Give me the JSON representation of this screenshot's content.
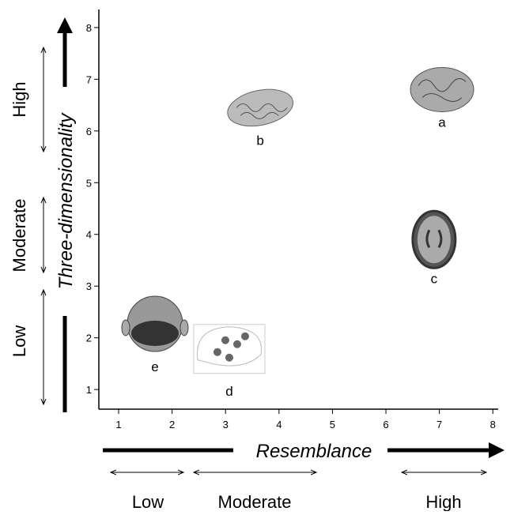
{
  "chart_data": {
    "type": "scatter",
    "x_label": "Resemblance",
    "y_label": "Three-dimensionality",
    "x_levels": [
      "Low",
      "Moderate",
      "High"
    ],
    "y_levels": [
      "High",
      "Moderate",
      "Low"
    ],
    "labels": [
      "a",
      "b",
      "c",
      "d",
      "e"
    ],
    "x": [
      7.05,
      3.65,
      6.9,
      3.07,
      1.68
    ],
    "y": [
      6.8,
      6.45,
      3.9,
      1.8,
      2.27
    ],
    "xlim": [
      0.63,
      8.1
    ],
    "ylim": [
      0.62,
      8.35
    ],
    "xticks": [
      1,
      2,
      3,
      4,
      5,
      6,
      7,
      8
    ],
    "yticks": [
      1,
      2,
      3,
      4,
      5,
      6,
      7,
      8
    ]
  }
}
